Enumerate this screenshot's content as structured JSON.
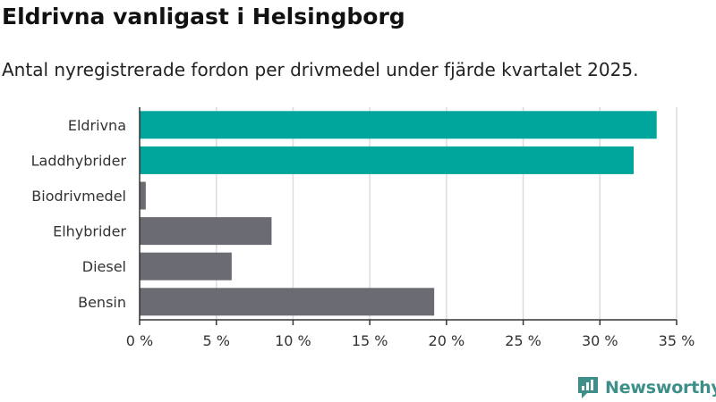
{
  "header": {
    "title": "Eldrivna vanligast i Helsingborg",
    "subtitle": "Antal nyregistrerade fordon per drivmedel under fjärde kvartalet 2025."
  },
  "chart_data": {
    "type": "bar",
    "orientation": "horizontal",
    "categories": [
      "Eldrivna",
      "Laddhybrider",
      "Biodrivmedel",
      "Elhybrider",
      "Diesel",
      "Bensin"
    ],
    "values": [
      33.7,
      32.2,
      0.4,
      8.6,
      6.0,
      19.2
    ],
    "colors": [
      "#00a59b",
      "#00a59b",
      "#6b6b73",
      "#6b6b73",
      "#6b6b73",
      "#6b6b73"
    ],
    "xlim": [
      0,
      35
    ],
    "xticks": [
      0,
      5,
      10,
      15,
      20,
      25,
      30,
      35
    ],
    "xtick_labels": [
      "0 %",
      "5 %",
      "10 %",
      "15 %",
      "20 %",
      "25 %",
      "30 %",
      "35 %"
    ],
    "grid": true,
    "title": "Eldrivna vanligast i Helsingborg",
    "xlabel": "",
    "ylabel": ""
  },
  "branding": {
    "name": "Newsworthy",
    "icon": "newsworthy-logo-icon",
    "color": "#3e8f8a"
  }
}
